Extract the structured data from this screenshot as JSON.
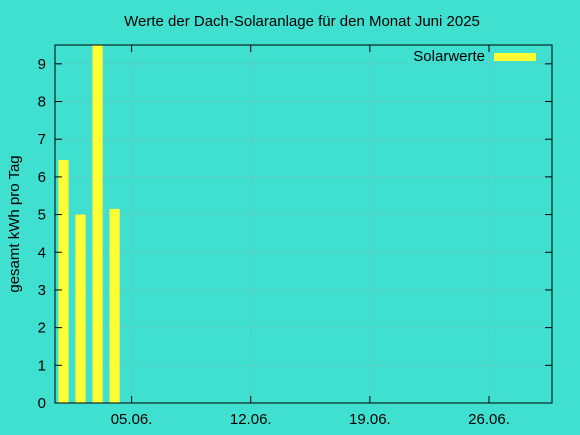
{
  "chart_data": {
    "type": "bar",
    "title": "Werte der Dach-Solaranlage für den Monat Juni 2025",
    "xlabel": "",
    "ylabel": "gesamt kWh pro Tag",
    "x": [
      1,
      2,
      3,
      4
    ],
    "series": [
      {
        "name": "Solarwerte",
        "values": [
          6.45,
          5.0,
          9.5,
          5.15
        ]
      }
    ],
    "xlim": [
      0.5,
      29.7
    ],
    "ylim": [
      0,
      9.5
    ],
    "yticks": [
      0,
      1,
      2,
      3,
      4,
      5,
      6,
      7,
      8,
      9
    ],
    "xticks": [
      {
        "x": 5,
        "label": "05.06."
      },
      {
        "x": 12,
        "label": "12.06."
      },
      {
        "x": 19,
        "label": "19.06."
      },
      {
        "x": 26,
        "label": "26.06."
      }
    ],
    "grid": true,
    "legend_position": "top-right",
    "colors": {
      "background": "#40e0d0",
      "bar": "#ffff33",
      "grid": "#a0a0a0",
      "axis": "#000000"
    }
  }
}
